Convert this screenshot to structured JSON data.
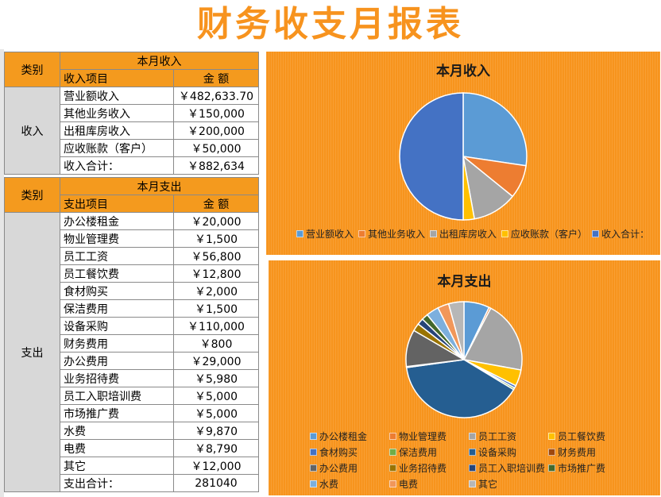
{
  "title": "财务收支月报表",
  "income": {
    "category_header": "类别",
    "section_header": "本月收入",
    "item_header": "收入项目",
    "amount_header": "金 额",
    "category_label": "收入",
    "rows": [
      {
        "item": "营业额收入",
        "amount": "￥482,633.70"
      },
      {
        "item": "其他业务收入",
        "amount": "￥150,000"
      },
      {
        "item": "出租库房收入",
        "amount": "￥200,000"
      },
      {
        "item": "应收账款（客户）",
        "amount": "￥50,000"
      },
      {
        "item": "收入合计：",
        "amount": "￥882,634"
      }
    ]
  },
  "expense": {
    "category_header": "类别",
    "section_header": "本月支出",
    "item_header": "支出项目",
    "amount_header": "金 额",
    "category_label": "支出",
    "rows": [
      {
        "item": "办公楼租金",
        "amount": "￥20,000"
      },
      {
        "item": "物业管理费",
        "amount": "￥1,500"
      },
      {
        "item": "员工工资",
        "amount": "￥56,800"
      },
      {
        "item": "员工餐饮费",
        "amount": "￥12,800"
      },
      {
        "item": "食材购买",
        "amount": "￥2,000"
      },
      {
        "item": "保洁费用",
        "amount": "￥1,500"
      },
      {
        "item": "设备采购",
        "amount": "￥110,000"
      },
      {
        "item": "财务费用",
        "amount": "￥800"
      },
      {
        "item": "办公费用",
        "amount": "￥29,000"
      },
      {
        "item": "业务招待费",
        "amount": "￥5,980"
      },
      {
        "item": "员工入职培训费",
        "amount": "￥5,000"
      },
      {
        "item": "市场推广费",
        "amount": "￥5,000"
      },
      {
        "item": "水费",
        "amount": "￥9,870"
      },
      {
        "item": "电费",
        "amount": "￥8,790"
      },
      {
        "item": "其它",
        "amount": "￥12,000"
      },
      {
        "item": "支出合计：",
        "amount": "281040"
      }
    ]
  },
  "chart_data": [
    {
      "type": "pie",
      "title": "本月收入",
      "categories": [
        "营业额收入",
        "其他业务收入",
        "出租库房收入",
        "应收账款（客户）",
        "收入合计："
      ],
      "values": [
        482633.7,
        150000,
        200000,
        50000,
        882634
      ],
      "colors": [
        "#5b9bd5",
        "#ed7d31",
        "#a5a5a5",
        "#ffc000",
        "#4472c4"
      ],
      "legend": "bottom"
    },
    {
      "type": "pie",
      "title": "本月支出",
      "categories": [
        "办公楼租金",
        "物业管理费",
        "员工工资",
        "员工餐饮费",
        "食材购买",
        "保洁费用",
        "设备采购",
        "财务费用",
        "办公费用",
        "业务招待费",
        "员工入职培训费",
        "市场推广费",
        "水费",
        "电费",
        "其它"
      ],
      "values": [
        20000,
        1500,
        56800,
        12800,
        2000,
        1500,
        110000,
        800,
        29000,
        5980,
        5000,
        5000,
        9870,
        8790,
        12000
      ],
      "colors": [
        "#5b9bd5",
        "#ed7d31",
        "#a5a5a5",
        "#ffc000",
        "#4472c4",
        "#70ad47",
        "#255e91",
        "#9e480e",
        "#636363",
        "#997300",
        "#264478",
        "#43682b",
        "#7cafdd",
        "#f1975a",
        "#b7b7b7"
      ],
      "legend": "bottom"
    }
  ]
}
